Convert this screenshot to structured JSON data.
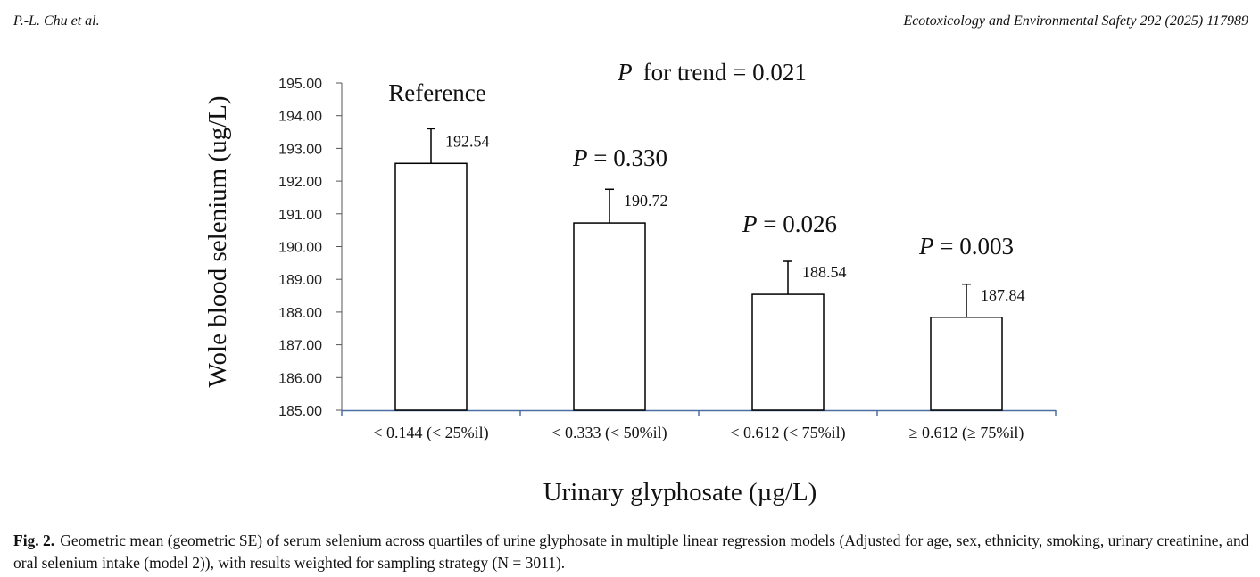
{
  "header": {
    "authors": "P.-L. Chu et al.",
    "journal": "Ecotoxicology and Environmental Safety 292 (2025) 117989"
  },
  "chart_data": {
    "type": "bar",
    "title": "P  for trend = 0.021",
    "title_italic_prefix": "P",
    "title_rest": "for trend = 0.021",
    "xlabel": "Urinary glyphosate (µg/L)",
    "ylabel": "Wole blood selenium (ug/L)",
    "ylim": [
      185,
      195
    ],
    "y_ticks": [
      "185.00",
      "186.00",
      "187.00",
      "188.00",
      "189.00",
      "190.00",
      "191.00",
      "192.00",
      "193.00",
      "194.00",
      "195.00"
    ],
    "grid": false,
    "categories": [
      "< 0.144 (< 25%il)",
      "< 0.333 (< 50%il)",
      "< 0.612 (< 75%il)",
      "≥ 0.612 (≥ 75%il)"
    ],
    "values": [
      192.54,
      190.72,
      188.54,
      187.84
    ],
    "value_labels": [
      "192.54",
      "190.72",
      "188.54",
      "187.84"
    ],
    "error_upper": [
      193.6,
      191.75,
      189.55,
      188.85
    ],
    "annotations": [
      {
        "italic": "",
        "text": "Reference"
      },
      {
        "italic": "P",
        "text": " = 0.330"
      },
      {
        "italic": "P",
        "text": " = 0.026"
      },
      {
        "italic": "P",
        "text": " = 0.003"
      }
    ],
    "colors": {
      "bar_fill": "#ffffff",
      "bar_stroke": "#000000",
      "x_axis": "#4a6fa5"
    }
  },
  "caption": {
    "label": "Fig. 2.",
    "text": "Geometric mean (geometric SE) of serum selenium across quartiles of urine glyphosate in multiple linear regression models (Adjusted for age, sex, ethnicity, smoking, urinary creatinine, and oral selenium intake (model 2)), with results weighted for sampling strategy (N = 3011)."
  }
}
